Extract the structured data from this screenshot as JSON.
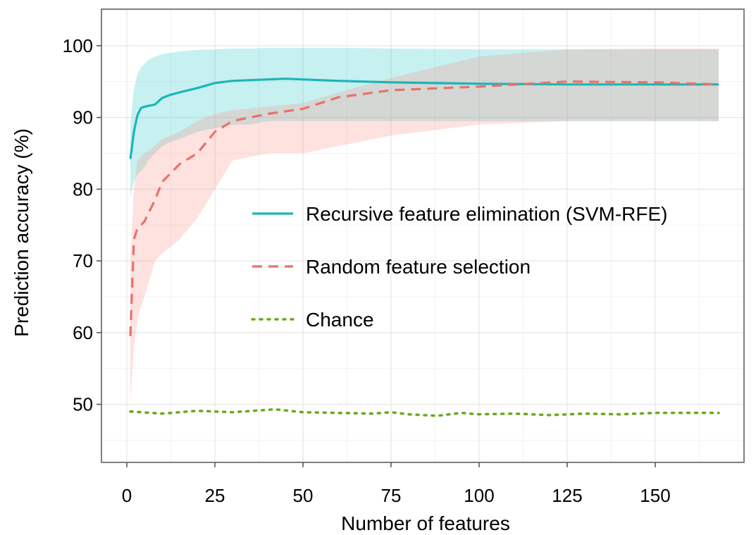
{
  "chart_data": {
    "type": "line",
    "xlabel": "Number of features",
    "ylabel": "Prediction accuracy (%)",
    "xlim": [
      -7,
      175
    ],
    "ylim": [
      42,
      105
    ],
    "x_ticks": [
      0,
      25,
      50,
      75,
      100,
      125,
      150
    ],
    "y_ticks": [
      50,
      60,
      70,
      80,
      90,
      100
    ],
    "grid": true,
    "legend_position": "center-right",
    "colors": {
      "rfe": "#1cb5b5",
      "random": "#e8726b",
      "chance": "#6aa81e",
      "rfe_band": "#20c4c8",
      "random_band": "#fa8a80"
    },
    "series": [
      {
        "name": "Recursive feature elimination (SVM-RFE)",
        "key": "rfe",
        "style": "solid",
        "x": [
          1,
          2,
          3,
          4,
          5,
          6,
          8,
          10,
          12,
          15,
          20,
          25,
          30,
          35,
          40,
          45,
          50,
          60,
          75,
          100,
          125,
          150,
          168
        ],
        "y": [
          84.2,
          88,
          90.3,
          91.3,
          91.5,
          91.6,
          91.8,
          92.7,
          93.1,
          93.5,
          94.1,
          94.8,
          95.1,
          95.2,
          95.3,
          95.4,
          95.3,
          95.1,
          94.9,
          94.7,
          94.6,
          94.6,
          94.6
        ],
        "lower": [
          79,
          81,
          82,
          82.5,
          83,
          84,
          85,
          86,
          86.5,
          87,
          88,
          88.5,
          89,
          89,
          89.5,
          89.5,
          89.5,
          89.5,
          89.5,
          89.5,
          89.5,
          89.5,
          89.5
        ],
        "upper": [
          89,
          94,
          96,
          97,
          97.5,
          98,
          98.5,
          98.8,
          99,
          99.2,
          99.4,
          99.5,
          99.6,
          99.6,
          99.7,
          99.7,
          99.7,
          99.7,
          99.6,
          99.5,
          99.5,
          99.5,
          99.5
        ]
      },
      {
        "name": "Random feature selection",
        "key": "random",
        "style": "dashed",
        "x": [
          1,
          2,
          3,
          5,
          8,
          10,
          15,
          20,
          25,
          30,
          40,
          50,
          60,
          75,
          100,
          125,
          150,
          168
        ],
        "y": [
          59.5,
          73,
          74.5,
          75.5,
          78.5,
          81,
          83.5,
          85,
          88,
          89.5,
          90.5,
          91.2,
          92.8,
          93.8,
          94.3,
          95,
          94.9,
          94.6
        ],
        "lower": [
          50,
          58,
          62,
          65,
          70,
          71,
          73,
          76,
          80,
          84,
          85,
          85,
          86,
          87.5,
          89,
          89.5,
          89.5,
          89.5
        ],
        "upper": [
          70,
          80,
          84,
          85,
          86,
          87,
          88,
          89.5,
          90.5,
          91,
          91.5,
          92,
          93.5,
          95.5,
          98.5,
          99.5,
          99.6,
          99.6
        ]
      },
      {
        "name": "Chance",
        "key": "chance",
        "style": "dotted",
        "x": [
          1,
          10,
          20,
          30,
          42,
          50,
          60,
          70,
          75,
          80,
          88,
          95,
          100,
          110,
          120,
          130,
          140,
          150,
          160,
          168
        ],
        "y": [
          49,
          48.7,
          49.1,
          48.9,
          49.3,
          48.9,
          48.8,
          48.7,
          48.9,
          48.6,
          48.4,
          48.8,
          48.6,
          48.7,
          48.5,
          48.7,
          48.6,
          48.8,
          48.8,
          48.8
        ]
      }
    ]
  }
}
